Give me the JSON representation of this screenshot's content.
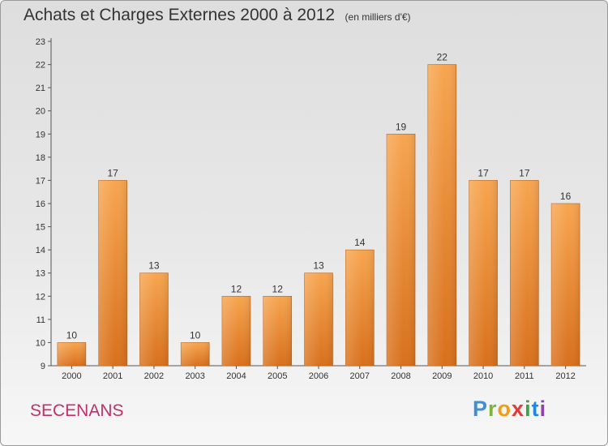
{
  "title": "Achats et Charges Externes 2000 à 2012",
  "unit_note": "(en milliers d'€)",
  "commune": "SECENANS",
  "logo_text": "Proxiti",
  "chart_data": {
    "type": "bar",
    "title": "Achats et Charges Externes 2000 à 2012",
    "xlabel": "",
    "ylabel": "",
    "categories": [
      "2000",
      "2001",
      "2002",
      "2003",
      "2004",
      "2005",
      "2006",
      "2007",
      "2008",
      "2009",
      "2010",
      "2011",
      "2012"
    ],
    "values": [
      10,
      17,
      13,
      10,
      12,
      12,
      13,
      14,
      19,
      22,
      17,
      17,
      16
    ],
    "ylim": [
      9,
      23
    ],
    "yticks": [
      9,
      10,
      11,
      12,
      13,
      14,
      15,
      16,
      17,
      18,
      19,
      20,
      21,
      22,
      23
    ],
    "grid": false,
    "bar_color_top": "#f7a54f",
    "bar_color_bottom": "#d8701c"
  }
}
